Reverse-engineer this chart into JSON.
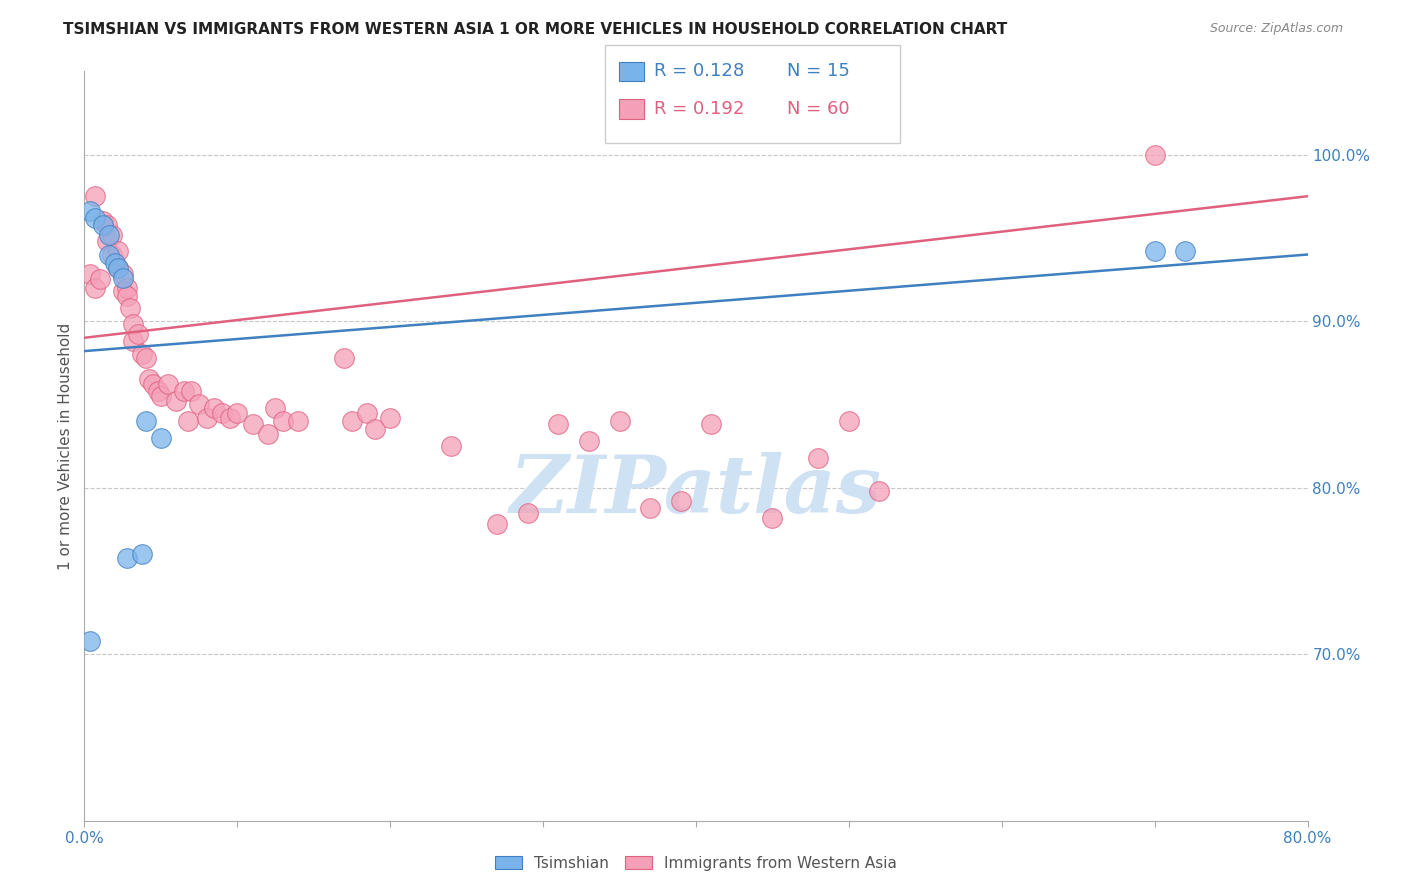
{
  "title": "TSIMSHIAN VS IMMIGRANTS FROM WESTERN ASIA 1 OR MORE VEHICLES IN HOUSEHOLD CORRELATION CHART",
  "source": "Source: ZipAtlas.com",
  "ylabel": "1 or more Vehicles in Household",
  "xmin": 0.0,
  "xmax": 0.8,
  "ymin": 0.6,
  "ymax": 1.05,
  "yticks": [
    0.7,
    0.8,
    0.9,
    1.0
  ],
  "ytick_labels": [
    "70.0%",
    "80.0%",
    "90.0%",
    "100.0%"
  ],
  "xticks": [
    0.0,
    0.1,
    0.2,
    0.3,
    0.4,
    0.5,
    0.6,
    0.7,
    0.8
  ],
  "xtick_labels": [
    "0.0%",
    "",
    "",
    "",
    "",
    "",
    "",
    "",
    "80.0%"
  ],
  "blue_color": "#7ab3ea",
  "pink_color": "#f4a0b8",
  "blue_line_color": "#4080c0",
  "pink_line_color": "#e06080",
  "legend_blue_R": "R = 0.128",
  "legend_blue_N": "N = 15",
  "legend_pink_R": "R = 0.192",
  "legend_pink_N": "N = 60",
  "blue_scatter_x": [
    0.004,
    0.007,
    0.012,
    0.016,
    0.016,
    0.02,
    0.022,
    0.025,
    0.7,
    0.72,
    0.004,
    0.028,
    0.038,
    0.04,
    0.05
  ],
  "blue_scatter_y": [
    0.966,
    0.962,
    0.958,
    0.952,
    0.94,
    0.935,
    0.932,
    0.926,
    0.942,
    0.942,
    0.708,
    0.758,
    0.76,
    0.84,
    0.83
  ],
  "pink_scatter_x": [
    0.004,
    0.007,
    0.007,
    0.01,
    0.012,
    0.015,
    0.015,
    0.018,
    0.018,
    0.022,
    0.022,
    0.025,
    0.025,
    0.028,
    0.028,
    0.03,
    0.032,
    0.032,
    0.035,
    0.038,
    0.04,
    0.042,
    0.045,
    0.048,
    0.05,
    0.055,
    0.06,
    0.065,
    0.068,
    0.07,
    0.075,
    0.08,
    0.085,
    0.09,
    0.095,
    0.1,
    0.11,
    0.12,
    0.125,
    0.13,
    0.14,
    0.17,
    0.175,
    0.185,
    0.19,
    0.2,
    0.24,
    0.27,
    0.29,
    0.31,
    0.33,
    0.35,
    0.37,
    0.39,
    0.41,
    0.45,
    0.48,
    0.5,
    0.52,
    0.7
  ],
  "pink_scatter_y": [
    0.928,
    0.975,
    0.92,
    0.925,
    0.96,
    0.958,
    0.948,
    0.952,
    0.94,
    0.942,
    0.932,
    0.928,
    0.918,
    0.92,
    0.915,
    0.908,
    0.898,
    0.888,
    0.892,
    0.88,
    0.878,
    0.865,
    0.862,
    0.858,
    0.855,
    0.862,
    0.852,
    0.858,
    0.84,
    0.858,
    0.85,
    0.842,
    0.848,
    0.845,
    0.842,
    0.845,
    0.838,
    0.832,
    0.848,
    0.84,
    0.84,
    0.878,
    0.84,
    0.845,
    0.835,
    0.842,
    0.825,
    0.778,
    0.785,
    0.838,
    0.828,
    0.84,
    0.788,
    0.792,
    0.838,
    0.782,
    0.818,
    0.84,
    0.798,
    1.0
  ],
  "blue_trend_x0": 0.0,
  "blue_trend_y0": 0.882,
  "blue_trend_x1": 0.8,
  "blue_trend_y1": 0.94,
  "pink_trend_x0": 0.0,
  "pink_trend_y0": 0.89,
  "pink_trend_x1": 0.8,
  "pink_trend_y1": 0.975,
  "watermark_text": "ZIPatlas",
  "watermark_color": "#cfe2f3",
  "background_color": "#ffffff",
  "grid_color": "#c8c8c8",
  "tick_color": "#4080c0",
  "title_fontsize": 11,
  "axis_label_fontsize": 11,
  "tick_fontsize": 11
}
